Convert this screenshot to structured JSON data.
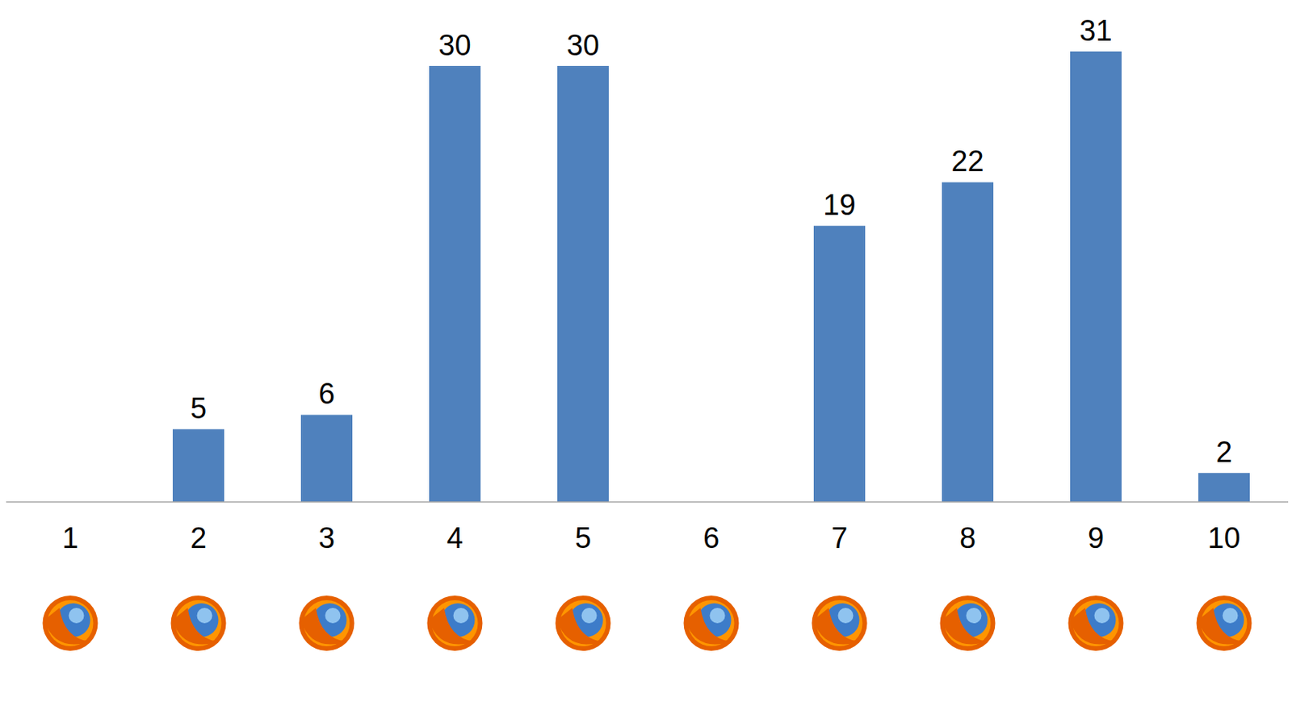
{
  "chart_data": {
    "type": "bar",
    "categories": [
      "1",
      "2",
      "3",
      "4",
      "5",
      "6",
      "7",
      "8",
      "9",
      "10"
    ],
    "values": [
      0,
      5,
      6,
      30,
      30,
      0,
      19,
      22,
      31,
      2
    ],
    "color": "#4f81bd",
    "ylim": [
      0,
      31
    ],
    "yticks": [
      0,
      31
    ],
    "grid": false,
    "data_labels": true,
    "tick_labels": "x"
  }
}
